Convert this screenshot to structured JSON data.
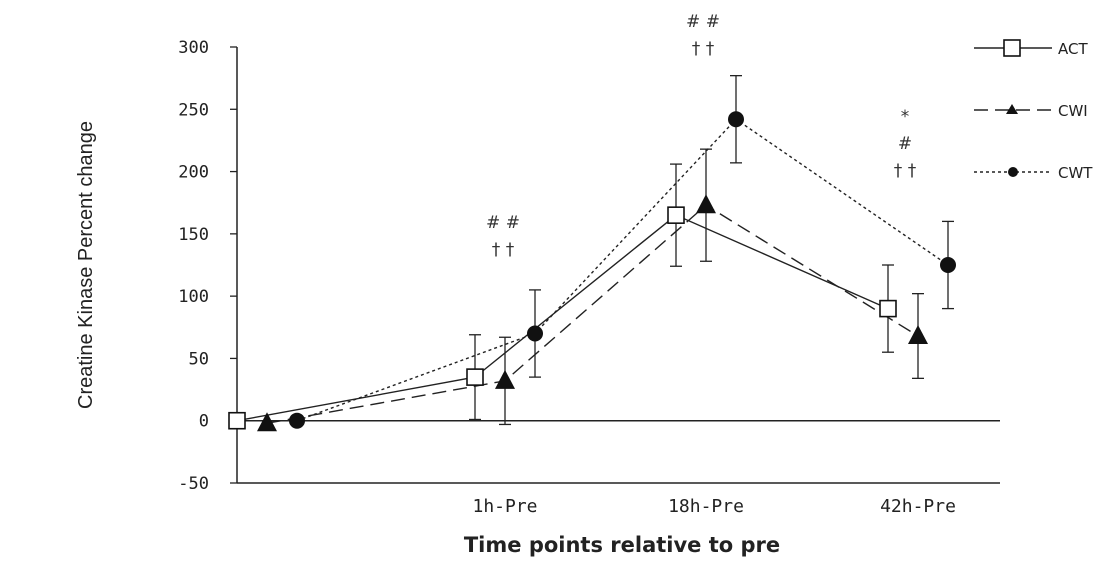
{
  "chart_data": {
    "type": "line",
    "xlabel": "Time points relative to pre",
    "ylabel": "Creatine Kinase Percent change",
    "categories": [
      "",
      "1h-Pre",
      "18h-Pre",
      "42h-Pre"
    ],
    "ylim": [
      -50,
      300
    ],
    "yticks": [
      -50,
      0,
      50,
      100,
      150,
      200,
      250,
      300
    ],
    "grid": false,
    "legend_position": "top-right",
    "series": [
      {
        "name": "ACT",
        "marker": "open-square",
        "line": "solid",
        "values": [
          0,
          35,
          165,
          90
        ],
        "errors": [
          0,
          34,
          41,
          35
        ]
      },
      {
        "name": "CWI",
        "marker": "filled-triangle",
        "line": "dashed",
        "values": [
          -2,
          32,
          173,
          68
        ],
        "errors": [
          0,
          35,
          45,
          34
        ]
      },
      {
        "name": "CWT",
        "marker": "filled-circle",
        "line": "dotted",
        "values": [
          0,
          70,
          242,
          125
        ],
        "errors": [
          0,
          35,
          35,
          35
        ]
      }
    ],
    "annotations": [
      {
        "category": "1h-Pre",
        "lines": [
          "# #",
          "† †"
        ]
      },
      {
        "category": "18h-Pre",
        "lines": [
          "# #",
          "† †"
        ]
      },
      {
        "category": "42h-Pre",
        "lines": [
          "*",
          "#",
          "† †"
        ]
      }
    ]
  }
}
